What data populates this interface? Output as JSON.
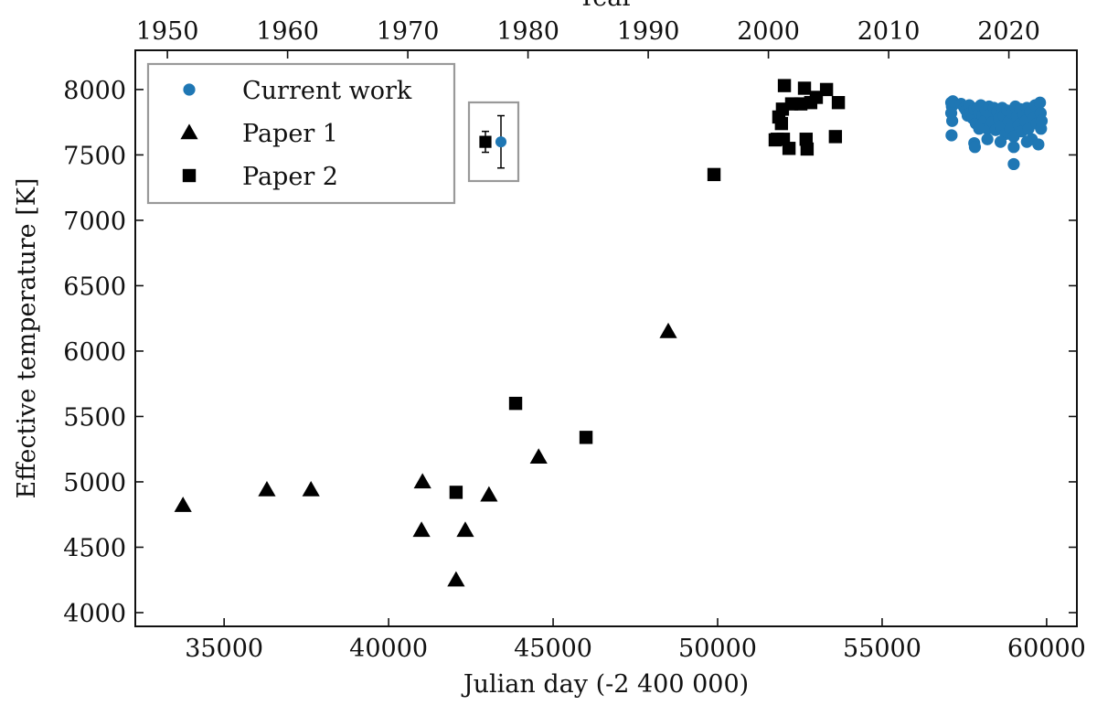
{
  "chart_data": {
    "type": "scatter",
    "xlabel": "Julian day (-2 400 000)",
    "ylabel": "Effective temperature [K]",
    "x2label": "Year",
    "xlim": [
      32300,
      60920
    ],
    "xticks": [
      35000,
      40000,
      45000,
      50000,
      55000,
      60000
    ],
    "x2lim": [
      1947.33,
      2025.66
    ],
    "x2ticks": [
      1950,
      1960,
      1970,
      1980,
      1990,
      2000,
      2010,
      2020
    ],
    "ylim": [
      3895,
      8300
    ],
    "yticks": [
      4000,
      4500,
      5000,
      5500,
      6000,
      6500,
      7000,
      7500,
      8000
    ],
    "grid": false,
    "legend": "upper left",
    "series": [
      {
        "name": "Current work",
        "color": "#1f77b4",
        "marker": "circle",
        "error_example": {
          "value": 7600,
          "error": 200
        },
        "x": [
          57100,
          57120,
          57150,
          57100,
          57130,
          57110,
          57400,
          57500,
          57550,
          57600,
          57650,
          57700,
          57750,
          57800,
          57850,
          57800,
          57820,
          57900,
          57950,
          58000,
          58050,
          58100,
          58150,
          58200,
          58250,
          58300,
          58350,
          58400,
          58450,
          58500,
          58550,
          58600,
          58650,
          58700,
          58750,
          58800,
          58850,
          58900,
          58950,
          59000,
          59000,
          59050,
          59100,
          59150,
          59200,
          59250,
          59300,
          59350,
          59400,
          59450,
          59500,
          59550,
          59600,
          59650,
          59700,
          59750,
          59800,
          59820,
          59850,
          59830,
          59000,
          58600,
          58200,
          59400,
          57950
        ],
        "y": [
          7900,
          7870,
          7910,
          7820,
          7760,
          7650,
          7890,
          7860,
          7840,
          7800,
          7880,
          7820,
          7780,
          7850,
          7740,
          7590,
          7560,
          7860,
          7820,
          7880,
          7800,
          7760,
          7840,
          7700,
          7870,
          7810,
          7750,
          7860,
          7690,
          7830,
          7780,
          7720,
          7860,
          7800,
          7660,
          7840,
          7760,
          7700,
          7820,
          7430,
          7640,
          7870,
          7790,
          7730,
          7850,
          7680,
          7810,
          7760,
          7860,
          7700,
          7830,
          7620,
          7780,
          7880,
          7740,
          7580,
          7900,
          7820,
          7760,
          7700,
          7560,
          7600,
          7620,
          7600,
          7700
        ]
      },
      {
        "name": "Paper 1",
        "color": "#000000",
        "marker": "triangle",
        "x": [
          33750,
          36300,
          37640,
          41030,
          41000,
          42050,
          42330,
          43050,
          44560,
          48500
        ],
        "y": [
          4820,
          4940,
          4940,
          5000,
          4630,
          4250,
          4630,
          4900,
          5190,
          6150
        ]
      },
      {
        "name": "Paper 2",
        "color": "#000000",
        "marker": "square",
        "error_example": {
          "value": 7600,
          "error": 80
        },
        "x": [
          42050,
          43860,
          46000,
          49890,
          52030,
          52640,
          53310,
          51860,
          51970,
          51940,
          52250,
          52530,
          52830,
          53000,
          51810,
          52000,
          52170,
          52690,
          52720,
          53580,
          53670,
          51750
        ],
        "y": [
          4920,
          5600,
          5340,
          7350,
          8030,
          8010,
          8000,
          7790,
          7850,
          7740,
          7890,
          7890,
          7900,
          7940,
          7620,
          7620,
          7550,
          7620,
          7545,
          7640,
          7900,
          7615
        ]
      }
    ]
  }
}
